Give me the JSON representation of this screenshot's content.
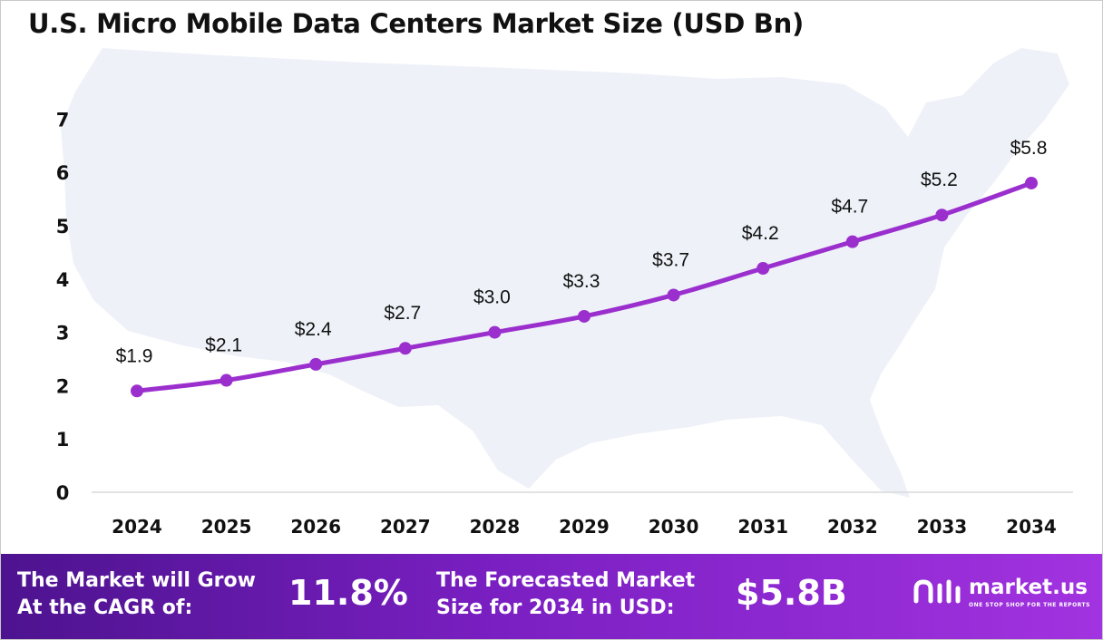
{
  "chart_data": {
    "type": "line",
    "title": "U.S. Micro Mobile Data Centers Market Size (USD Bn)",
    "categories": [
      "2024",
      "2025",
      "2026",
      "2027",
      "2028",
      "2029",
      "2030",
      "2031",
      "2032",
      "2033",
      "2034"
    ],
    "values": [
      1.9,
      2.1,
      2.4,
      2.7,
      3.0,
      3.3,
      3.7,
      4.2,
      4.7,
      5.2,
      5.8
    ],
    "data_labels": [
      "$1.9",
      "$2.1",
      "$2.4",
      "$2.7",
      "$3.0",
      "$3.3",
      "$3.7",
      "$4.2",
      "$4.7",
      "$5.2",
      "$5.8"
    ],
    "yticks": [
      "0",
      "1",
      "2",
      "3",
      "4",
      "5",
      "6",
      "7"
    ],
    "ylim": [
      0,
      7
    ],
    "grid": false,
    "line_color": "#9b2fce",
    "background_shape": "United States map silhouette"
  },
  "footer": {
    "cagr_label_line1": "The Market will Grow",
    "cagr_label_line2": "At the CAGR of:",
    "cagr_value": "11.8%",
    "forecast_label_line1": "The Forecasted Market",
    "forecast_label_line2": "Size for 2034 in USD:",
    "forecast_value": "$5.8B",
    "brand_name": "market.us",
    "brand_tagline": "ONE STOP SHOP FOR THE REPORTS",
    "gradient_colors": [
      "#4d138f",
      "#a233e0"
    ]
  }
}
